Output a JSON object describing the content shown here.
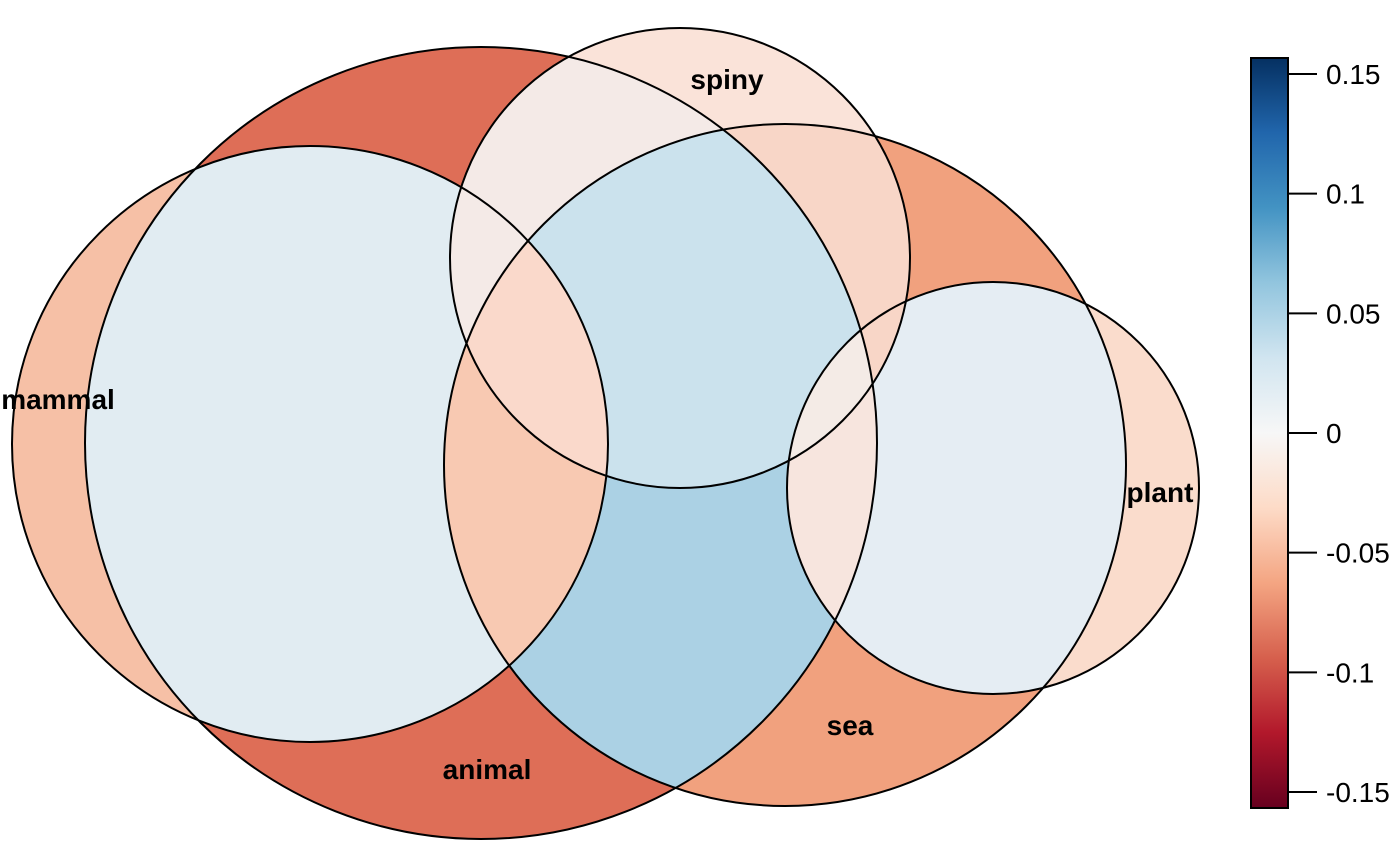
{
  "sets": [
    {
      "id": "animal",
      "label": "animal"
    },
    {
      "id": "mammal",
      "label": "mammal"
    },
    {
      "id": "spiny",
      "label": "spiny"
    },
    {
      "id": "sea",
      "label": "sea"
    },
    {
      "id": "plant",
      "label": "plant"
    }
  ],
  "colorbar": {
    "ticks": [
      "0.15",
      "0.1",
      "0.05",
      "0",
      "-0.05",
      "-0.1",
      "-0.15"
    ],
    "range": [
      -0.15,
      0.15
    ],
    "gradient": [
      "#67001f",
      "#b2182b",
      "#d6604d",
      "#f4a582",
      "#fddbc7",
      "#f7f7f7",
      "#d1e5f0",
      "#92c5de",
      "#4393c3",
      "#2166ac",
      "#053061"
    ]
  },
  "region_colors": {
    "animal_only": "#de6e57",
    "mammal_only": "#f6c0a6",
    "mammal_animal": "#e1ecf2",
    "spiny_only": "#fae3d9",
    "spiny_animal": "#f4eae7",
    "spiny_animal_sea": "#cbe2ed",
    "spiny_animal_mammal_sea": "#fad9cb",
    "animal_mammal_sea": "#f8c9b2",
    "animal_sea": "#abd1e4",
    "sea_only": "#f1a17e",
    "spiny_sea": "#f8d6c7",
    "plant_only": "#fadccc",
    "plant_sea": "#e5edf3",
    "plant_sea_animal": "#f7e5de",
    "plant_sea_animal_spiny": "#f4ebe6"
  }
}
